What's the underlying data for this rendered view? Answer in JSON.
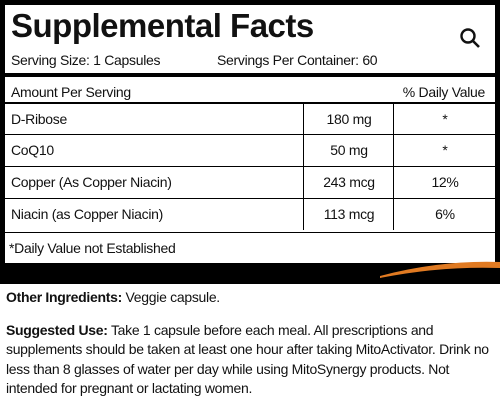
{
  "header": {
    "title": "Supplemental Facts",
    "serving_size": "Serving Size: 1 Capsules",
    "servings_per_container": "Servings Per Container: 60"
  },
  "table": {
    "columns": [
      "Amount Per Serving",
      "% Daily Value"
    ],
    "rows": [
      [
        "D-Ribose",
        "180 mg",
        "*"
      ],
      [
        "CoQ10",
        "50 mg",
        "*"
      ],
      [
        "Copper (As Copper Niacin)",
        "243 mcg",
        "12%"
      ],
      [
        "Niacin  (as Copper Niacin)",
        "113 mcg",
        "6%"
      ]
    ]
  },
  "footnote": "*Daily Value not Established",
  "other_ingredients": {
    "label": "Other Ingredients:",
    "text": "Veggie capsule."
  },
  "suggested_use": {
    "label": "Suggested Use:",
    "text": "Take 1 capsule before each meal. All prescriptions and supplements should be taken at least one hour after taking MitoActivator. Drink no less than 8 glasses of water per day while using MitoSynergy products. Not intended for pregnant or lactating women."
  }
}
